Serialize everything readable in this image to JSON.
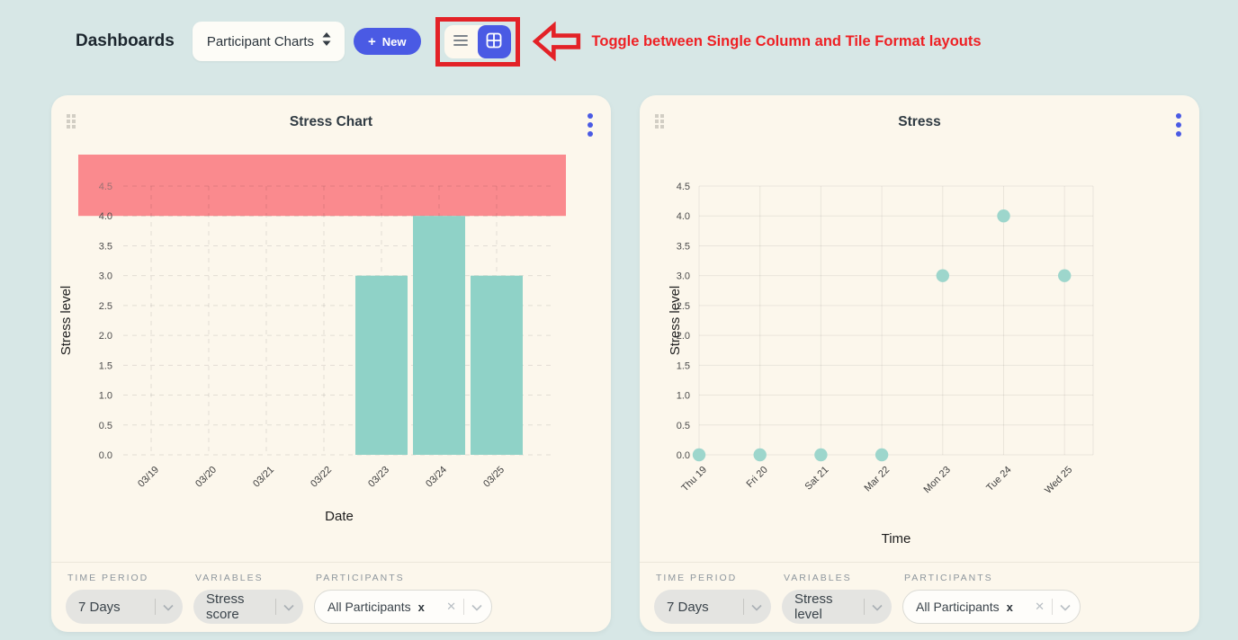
{
  "header": {
    "title": "Dashboards",
    "dashboard_selector": {
      "value": "Participant Charts"
    },
    "new_button": {
      "plus": "+",
      "label": "New"
    },
    "layout_toggle": {
      "active": "tile-format"
    },
    "annotation": "Toggle between Single Column and Tile Format layouts"
  },
  "colors": {
    "accent_blue": "#4a5ae4",
    "annotation_red": "#ee2024",
    "band_red": "#fa8a8e",
    "bar_teal": "#8fd2c7",
    "point_teal": "#9dd6cc",
    "card_bg": "#fcf7ec",
    "page_bg": "#d7e7e6"
  },
  "cards": [
    {
      "title": "Stress Chart",
      "filters": {
        "time_period": {
          "label": "TIME PERIOD",
          "value": "7 Days"
        },
        "variables": {
          "label": "VARIABLES",
          "value": "Stress score"
        },
        "participants": {
          "label": "PARTICIPANTS",
          "value": "All Participants",
          "remove_tag": "x",
          "clear": "✕"
        }
      }
    },
    {
      "title": "Stress",
      "filters": {
        "time_period": {
          "label": "TIME PERIOD",
          "value": "7 Days"
        },
        "variables": {
          "label": "VARIABLES",
          "value": "Stress level"
        },
        "participants": {
          "label": "PARTICIPANTS",
          "value": "All Participants",
          "remove_tag": "x",
          "clear": "✕"
        }
      }
    }
  ],
  "chart_data": [
    {
      "type": "bar",
      "title": "Stress Chart",
      "categories": [
        "03/19",
        "03/20",
        "03/21",
        "03/22",
        "03/23",
        "03/24",
        "03/25"
      ],
      "values": [
        0,
        0,
        0,
        0,
        3,
        4,
        3
      ],
      "xlabel": "Date",
      "ylabel": "Stress level",
      "ylim": [
        0,
        4.5
      ],
      "ytick_step": 0.5,
      "grid": "dashed",
      "bar_color": "#8fd2c7",
      "threshold_band": {
        "from": 4.0,
        "color": "#fa8a8e"
      }
    },
    {
      "type": "scatter",
      "title": "Stress",
      "categories": [
        "Thu 19",
        "Fri 20",
        "Sat 21",
        "Mar 22",
        "Mon 23",
        "Tue 24",
        "Wed 25"
      ],
      "values": [
        0,
        0,
        0,
        0,
        3,
        4,
        3
      ],
      "xlabel": "Time",
      "ylabel": "Stress level",
      "ylim": [
        0,
        4.5
      ],
      "ytick_step": 0.5,
      "grid": "solid",
      "point_color": "#9dd6cc"
    }
  ]
}
